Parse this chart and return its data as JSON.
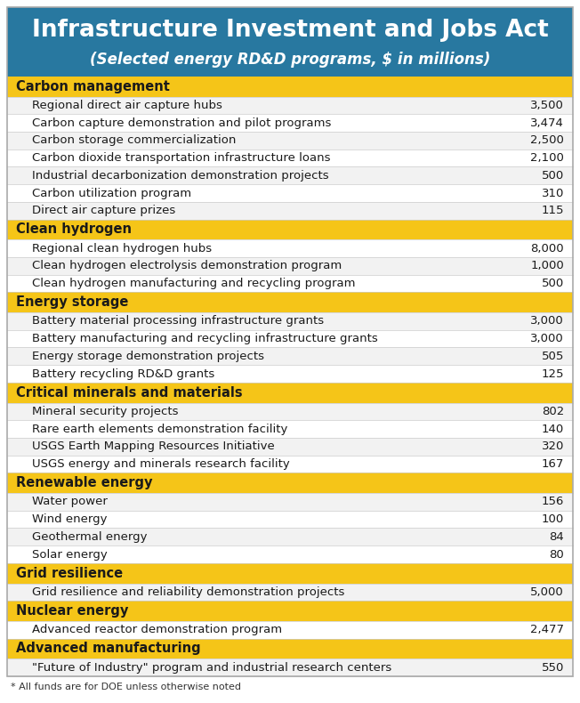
{
  "title": "Infrastructure Investment and Jobs Act",
  "subtitle": "(Selected energy RD&D programs, $ in millions)",
  "footnote": "* All funds are for DOE unless otherwise noted",
  "header_bg": "#2878a0",
  "header_text_color": "#ffffff",
  "category_bg": "#f5c518",
  "category_text_color": "#1a1a1a",
  "row_bg_even": "#f2f2f2",
  "row_bg_odd": "#ffffff",
  "row_text_color": "#1a1a1a",
  "border_color": "#cccccc",
  "outer_border_color": "#aaaaaa",
  "rows": [
    {
      "type": "category",
      "label": "Carbon management",
      "value": ""
    },
    {
      "type": "item",
      "label": "Regional direct air capture hubs",
      "value": "3,500"
    },
    {
      "type": "item",
      "label": "Carbon capture demonstration and pilot programs",
      "value": "3,474"
    },
    {
      "type": "item",
      "label": "Carbon storage commercialization",
      "value": "2,500"
    },
    {
      "type": "item",
      "label": "Carbon dioxide transportation infrastructure loans",
      "value": "2,100"
    },
    {
      "type": "item",
      "label": "Industrial decarbonization demonstration projects",
      "value": "500"
    },
    {
      "type": "item",
      "label": "Carbon utilization program",
      "value": "310"
    },
    {
      "type": "item",
      "label": "Direct air capture prizes",
      "value": "115"
    },
    {
      "type": "category",
      "label": "Clean hydrogen",
      "value": ""
    },
    {
      "type": "item",
      "label": "Regional clean hydrogen hubs",
      "value": "8,000"
    },
    {
      "type": "item",
      "label": "Clean hydrogen electrolysis demonstration program",
      "value": "1,000"
    },
    {
      "type": "item",
      "label": "Clean hydrogen manufacturing and recycling program",
      "value": "500"
    },
    {
      "type": "category",
      "label": "Energy storage",
      "value": ""
    },
    {
      "type": "item",
      "label": "Battery material processing infrastructure grants",
      "value": "3,000"
    },
    {
      "type": "item",
      "label": "Battery manufacturing and recycling infrastructure grants",
      "value": "3,000"
    },
    {
      "type": "item",
      "label": "Energy storage demonstration projects",
      "value": "505"
    },
    {
      "type": "item",
      "label": "Battery recycling RD&D grants",
      "value": "125"
    },
    {
      "type": "category",
      "label": "Critical minerals and materials",
      "value": ""
    },
    {
      "type": "item",
      "label": "Mineral security projects",
      "value": "802"
    },
    {
      "type": "item",
      "label": "Rare earth elements demonstration facility",
      "value": "140"
    },
    {
      "type": "item",
      "label": "USGS Earth Mapping Resources Initiative",
      "value": "320"
    },
    {
      "type": "item",
      "label": "USGS energy and minerals research facility",
      "value": "167"
    },
    {
      "type": "category",
      "label": "Renewable energy",
      "value": ""
    },
    {
      "type": "item",
      "label": "Water power",
      "value": "156"
    },
    {
      "type": "item",
      "label": "Wind energy",
      "value": "100"
    },
    {
      "type": "item",
      "label": "Geothermal energy",
      "value": "84"
    },
    {
      "type": "item",
      "label": "Solar energy",
      "value": "80"
    },
    {
      "type": "category",
      "label": "Grid resilience",
      "value": ""
    },
    {
      "type": "item",
      "label": "Grid resilience and reliability demonstration projects",
      "value": "5,000"
    },
    {
      "type": "category",
      "label": "Nuclear energy",
      "value": ""
    },
    {
      "type": "item",
      "label": "Advanced reactor demonstration program",
      "value": "2,477"
    },
    {
      "type": "category",
      "label": "Advanced manufacturing",
      "value": ""
    },
    {
      "type": "item",
      "label": "\"Future of Industry\" program and industrial research centers",
      "value": "550"
    }
  ]
}
